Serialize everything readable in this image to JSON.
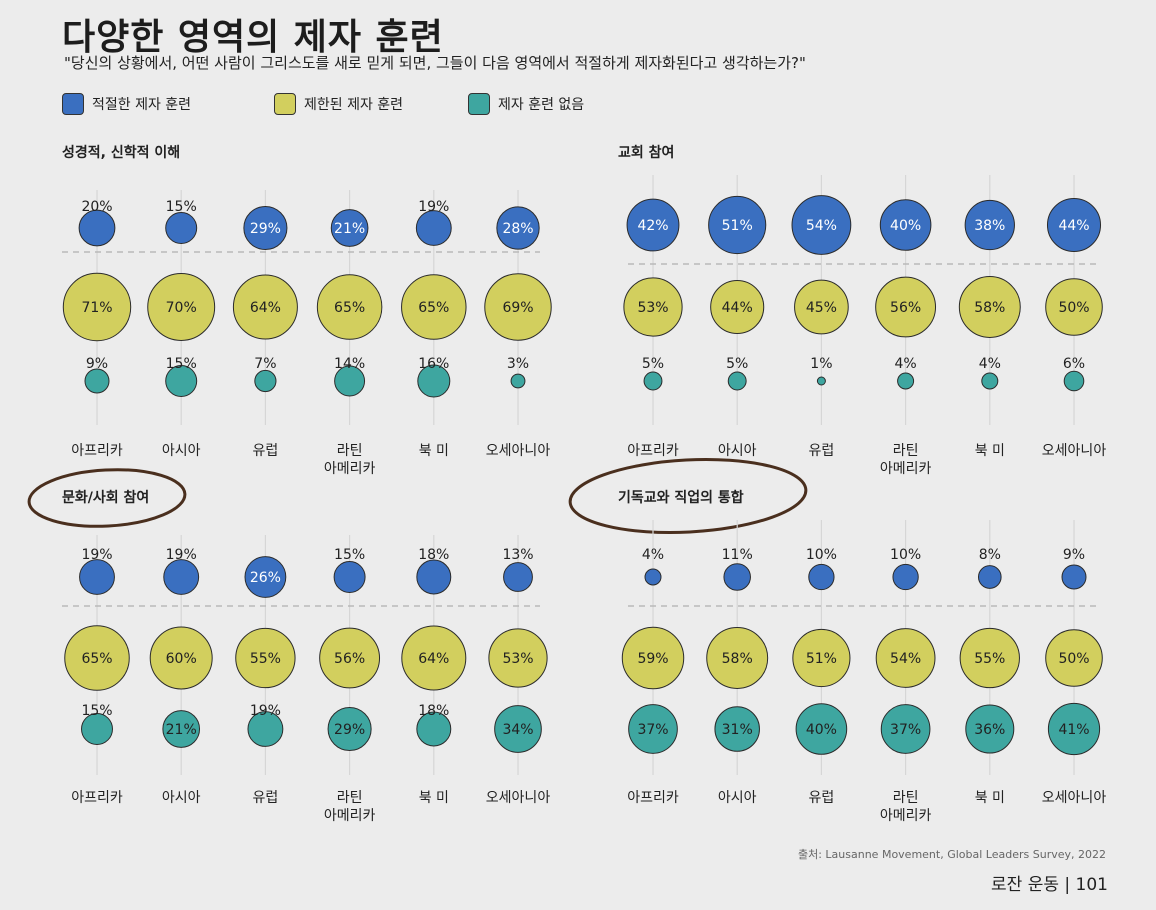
{
  "title": "다양한 영역의 제자 훈련",
  "subtitle": "\"당신의 상황에서, 어떤 사람이 그리스도를 새로 믿게 되면, 그들이 다음 영역에서 적절하게 제자화된다고 생각하는가?\"",
  "legend": [
    {
      "label": "적절한 제자 훈련",
      "color": "#3a6fc0"
    },
    {
      "label": "제한된 제자 훈련",
      "color": "#d2cf5e"
    },
    {
      "label": "제자 훈련 없음",
      "color": "#3ea6a0"
    }
  ],
  "source": "출처: Lausanne Movement, Global Leaders Survey, 2022",
  "page_footer": "로잔 운동 | 101",
  "chart_data": [
    {
      "type": "bubble",
      "title": "성경적, 신학적 이해",
      "categories": [
        "아프리카",
        "아시아",
        "유럽",
        "라틴\n아메리카",
        "북 미",
        "오세아니아"
      ],
      "series": [
        {
          "name": "적절한 제자 훈련",
          "values": [
            20,
            15,
            29,
            21,
            19,
            28
          ]
        },
        {
          "name": "제한된 제자 훈련",
          "values": [
            71,
            70,
            64,
            65,
            65,
            69
          ]
        },
        {
          "name": "제자 훈련 없음",
          "values": [
            9,
            15,
            7,
            14,
            16,
            3
          ]
        }
      ]
    },
    {
      "type": "bubble",
      "title": "교회 참여",
      "categories": [
        "아프리카",
        "아시아",
        "유럽",
        "라틴\n아메리카",
        "북 미",
        "오세아니아"
      ],
      "series": [
        {
          "name": "적절한 제자 훈련",
          "values": [
            42,
            51,
            54,
            40,
            38,
            44
          ]
        },
        {
          "name": "제한된 제자 훈련",
          "values": [
            53,
            44,
            45,
            56,
            58,
            50
          ]
        },
        {
          "name": "제자 훈련 없음",
          "values": [
            5,
            5,
            1,
            4,
            4,
            6
          ]
        }
      ]
    },
    {
      "type": "bubble",
      "title": "문화/사회 참여",
      "categories": [
        "아프리카",
        "아시아",
        "유럽",
        "라틴\n아메리카",
        "북 미",
        "오세아니아"
      ],
      "series": [
        {
          "name": "적절한 제자 훈련",
          "values": [
            19,
            19,
            26,
            15,
            18,
            13
          ]
        },
        {
          "name": "제한된 제자 훈련",
          "values": [
            65,
            60,
            55,
            56,
            64,
            53
          ]
        },
        {
          "name": "제자 훈련 없음",
          "values": [
            15,
            21,
            19,
            29,
            18,
            34
          ]
        }
      ]
    },
    {
      "type": "bubble",
      "title": "기독교와 직업의 통합",
      "categories": [
        "아프리카",
        "아시아",
        "유럽",
        "라틴\n아메리카",
        "북 미",
        "오세아니아"
      ],
      "series": [
        {
          "name": "적절한 제자 훈련",
          "values": [
            4,
            11,
            10,
            10,
            8,
            9
          ]
        },
        {
          "name": "제한된 제자 훈련",
          "values": [
            59,
            58,
            51,
            54,
            55,
            50
          ]
        },
        {
          "name": "제자 훈련 없음",
          "values": [
            37,
            31,
            40,
            37,
            36,
            41
          ]
        }
      ]
    }
  ]
}
